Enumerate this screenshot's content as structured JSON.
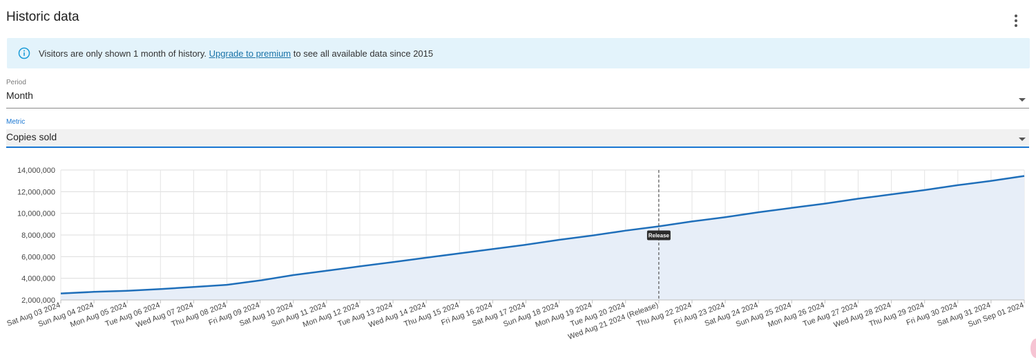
{
  "card": {
    "title": "Historic data",
    "menu_icon": "more-vert-icon"
  },
  "alert": {
    "icon": "info-icon",
    "text_before": "Visitors are only shown 1 month of history. ",
    "link_text": "Upgrade to premium",
    "text_after": " to see all available data since 2015",
    "background": "#e3f3fb"
  },
  "period": {
    "label": "Period",
    "value": "Month"
  },
  "metric": {
    "label": "Metric",
    "value": "Copies sold"
  },
  "colors": {
    "accent": "#1976d2",
    "line": "#1f6fba",
    "area": "#e7eef8"
  },
  "chart_data": {
    "type": "area",
    "x": [
      "Sat Aug 03 2024",
      "Sun Aug 04 2024",
      "Mon Aug 05 2024",
      "Tue Aug 06 2024",
      "Wed Aug 07 2024",
      "Thu Aug 08 2024",
      "Fri Aug 09 2024",
      "Sat Aug 10 2024",
      "Sun Aug 11 2024",
      "Mon Aug 12 2024",
      "Tue Aug 13 2024",
      "Wed Aug 14 2024",
      "Thu Aug 15 2024",
      "Fri Aug 16 2024",
      "Sat Aug 17 2024",
      "Sun Aug 18 2024",
      "Mon Aug 19 2024",
      "Tue Aug 20 2024",
      "Wed Aug 21 2024 (Release)",
      "Thu Aug 22 2024",
      "Fri Aug 23 2024",
      "Sat Aug 24 2024",
      "Sun Aug 25 2024",
      "Mon Aug 26 2024",
      "Tue Aug 27 2024",
      "Wed Aug 28 2024",
      "Thu Aug 29 2024",
      "Fri Aug 30 2024",
      "Sat Aug 31 2024",
      "Sun Sep 01 2024"
    ],
    "series": [
      {
        "values": [
          2600000,
          2750000,
          2850000,
          3000000,
          3200000,
          3400000,
          3800000,
          4300000,
          4700000,
          5100000,
          5500000,
          5900000,
          6300000,
          6700000,
          7100000,
          7550000,
          7950000,
          8400000,
          8800000,
          9250000,
          9650000,
          10100000,
          10500000,
          10900000,
          11350000,
          11750000,
          12150000,
          12600000,
          13000000,
          13450000
        ]
      }
    ],
    "yticks": [
      "2,000,000",
      "4,000,000",
      "6,000,000",
      "8,000,000",
      "10,000,000",
      "12,000,000",
      "14,000,000"
    ],
    "ylim": [
      2000000,
      14000000
    ],
    "grid": true,
    "annotation": {
      "x_index": 18,
      "label": "Release",
      "style": "dashed-vertical-line"
    },
    "title": "",
    "xlabel": "",
    "ylabel": ""
  }
}
